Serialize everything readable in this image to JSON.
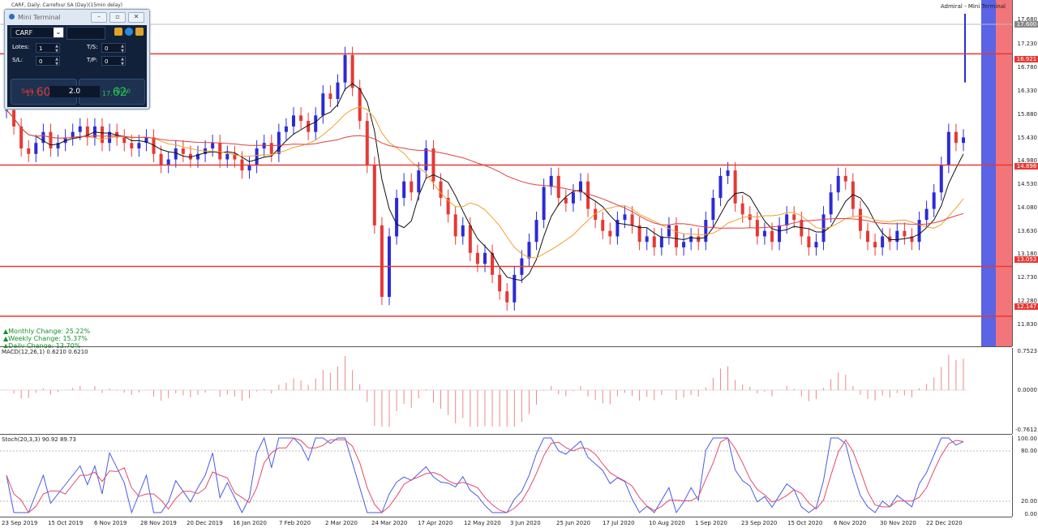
{
  "window": {
    "chart_title": "CARF, Daily: Carrefour SA (Day)(15min delay)",
    "top_right_label": "Admiral - Mini Terminal"
  },
  "mini_terminal": {
    "title": "Mini Terminal",
    "symbol": "CARF",
    "lots_label": "Lotes:",
    "lots_value": "1",
    "sl_label": "S/L:",
    "sl_value": "0",
    "ts_label": "T/S:",
    "ts_value": "0",
    "tp_label": "T/P:",
    "tp_value": "0",
    "sell_price_small": "17.",
    "sell_price_big": "60",
    "sell_price_sup": "0",
    "buy_price_small": "17.",
    "buy_price_big": "62",
    "buy_price_sup": "0",
    "lot_size": "2.0",
    "sell_label": "Sell",
    "buy_label": "Buy",
    "icons": [
      "minimize-icon",
      "restore-icon",
      "close-icon",
      "chart-icon",
      "settings-icon",
      "info-icon",
      "down-arrow-icon",
      "up-arrow-icon"
    ],
    "colors": {
      "sell": "#e53935",
      "buy": "#27c24c"
    }
  },
  "price_axis": {
    "ticks": [
      "17.680",
      "17.230",
      "16.780",
      "16.330",
      "15.880",
      "15.430",
      "14.980",
      "14.530",
      "14.080",
      "13.630",
      "13.180",
      "12.730",
      "12.280",
      "11.830"
    ],
    "tags": {
      "current": "17.600",
      "r1": "16.921",
      "r2": "14.898",
      "r3": "13.053",
      "r4": "12.147"
    }
  },
  "stats": {
    "monthly": "Monthly Change: 25.22%",
    "weekly": "Weekly Change: 15.37%",
    "daily": "Daily Change: 13.70%"
  },
  "macd": {
    "label": "MACD(12,26,1) 0.6210 0.6210",
    "axis_top": "0.7523",
    "axis_mid": "0.0000",
    "axis_bottom": "-0.7612"
  },
  "stoch": {
    "label": "Stoch(20,3,3) 90.92 89.73",
    "axis": [
      "100.00",
      "80.00",
      "20.00",
      "0.00"
    ]
  },
  "x_axis": {
    "labels": [
      "23 Sep 2019",
      "15 Oct 2019",
      "6 Nov 2019",
      "28 Nov 2019",
      "20 Dec 2019",
      "16 Jan 2020",
      "7 Feb 2020",
      "2 Mar 2020",
      "24 Mar 2020",
      "17 Apr 2020",
      "12 May 2020",
      "3 Jun 2020",
      "25 Jun 2020",
      "17 Jul 2020",
      "10 Aug 2020",
      "1 Sep 2020",
      "23 Sep 2020",
      "15 Oct 2020",
      "6 Nov 2020",
      "30 Nov 2020",
      "22 Dec 2020"
    ]
  },
  "chart_data": {
    "type": "candlestick",
    "ylim": [
      11.6,
      17.9
    ],
    "horizontal_levels": [
      16.921,
      14.898,
      13.053,
      12.147
    ],
    "last_price": 17.6,
    "closes": [
      15.9,
      15.6,
      15.2,
      15.1,
      15.3,
      15.5,
      15.2,
      15.3,
      15.4,
      15.5,
      15.6,
      15.4,
      15.6,
      15.3,
      15.5,
      15.4,
      15.3,
      15.2,
      15.3,
      15.4,
      15.1,
      14.9,
      15.0,
      15.2,
      15.1,
      15.0,
      15.1,
      15.2,
      15.3,
      15.0,
      15.1,
      15.0,
      14.8,
      14.9,
      15.2,
      15.3,
      15.1,
      15.5,
      15.6,
      15.8,
      15.7,
      15.5,
      15.8,
      16.2,
      16.1,
      16.4,
      16.9,
      16.3,
      15.7,
      14.9,
      13.8,
      12.5,
      13.6,
      14.3,
      14.6,
      14.4,
      14.8,
      15.2,
      14.6,
      14.3,
      14.0,
      13.6,
      13.8,
      13.3,
      13.1,
      13.3,
      12.9,
      12.6,
      12.4,
      12.9,
      13.2,
      13.5,
      13.9,
      14.5,
      14.7,
      14.3,
      14.2,
      14.4,
      14.6,
      14.1,
      13.9,
      13.7,
      13.6,
      13.9,
      14.0,
      13.8,
      13.5,
      13.6,
      13.4,
      13.6,
      13.8,
      13.4,
      13.5,
      13.6,
      13.5,
      13.9,
      14.3,
      14.7,
      14.8,
      14.2,
      14.0,
      13.9,
      13.6,
      13.7,
      13.5,
      13.8,
      14.0,
      13.9,
      13.6,
      13.4,
      13.5,
      14.0,
      14.4,
      14.7,
      14.6,
      14.1,
      13.7,
      13.5,
      13.4,
      13.6,
      13.5,
      13.7,
      13.6,
      13.5,
      13.9,
      14.1,
      14.4,
      14.9,
      15.5,
      15.3,
      15.4
    ]
  }
}
